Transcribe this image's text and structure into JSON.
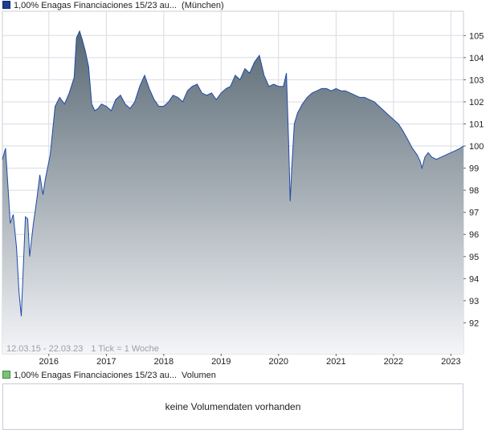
{
  "legend": {
    "price_label": "1,00% Enagas Financiaciones 15/23 au...",
    "exchange": "(München)",
    "volume_label": "1,00% Enagas Financiaciones 15/23 au...",
    "volume_suffix": "Volumen"
  },
  "chart_info": {
    "range": "12.03.15 - 22.03.23",
    "tick": "1 Tick = 1 Woche"
  },
  "volume_panel": {
    "message": "keine Volumendaten vorhanden"
  },
  "colors": {
    "line": "#1f4aa8",
    "fill_top": "#586873",
    "fill_bottom": "#f4f5f8",
    "grid": "#d8dbe2",
    "border": "#c8ccd6"
  },
  "chart_data": {
    "type": "area",
    "xlabel": "",
    "ylabel": "",
    "x_ticks": [
      "2016",
      "2017",
      "2018",
      "2019",
      "2020",
      "2021",
      "2022",
      "2023"
    ],
    "y_ticks": [
      92,
      93,
      94,
      95,
      96,
      97,
      98,
      99,
      100,
      101,
      102,
      103,
      104,
      105
    ],
    "ylim": [
      90.6,
      106.1
    ],
    "xlim": [
      "2015-03-12",
      "2023-03-22"
    ],
    "grid": true,
    "legend_position": "top-left",
    "series": [
      {
        "name": "1,00% Enagas Financiaciones 15/23 au...",
        "x": [
          "2015-03-12",
          "2015-04-01",
          "2015-05-01",
          "2015-05-20",
          "2015-06-10",
          "2015-06-25",
          "2015-07-10",
          "2015-08-05",
          "2015-08-20",
          "2015-09-01",
          "2015-09-25",
          "2015-10-15",
          "2015-11-05",
          "2015-11-25",
          "2015-12-10",
          "2016-01-10",
          "2016-02-10",
          "2016-03-10",
          "2016-04-10",
          "2016-05-10",
          "2016-06-10",
          "2016-06-25",
          "2016-07-15",
          "2016-08-01",
          "2016-08-20",
          "2016-09-10",
          "2016-09-30",
          "2016-10-20",
          "2016-11-10",
          "2016-12-01",
          "2017-01-01",
          "2017-02-01",
          "2017-03-01",
          "2017-04-01",
          "2017-05-01",
          "2017-06-01",
          "2017-07-01",
          "2017-08-01",
          "2017-09-01",
          "2017-10-01",
          "2017-11-01",
          "2017-12-01",
          "2018-01-01",
          "2018-02-01",
          "2018-03-01",
          "2018-04-01",
          "2018-05-01",
          "2018-06-01",
          "2018-07-01",
          "2018-08-01",
          "2018-09-01",
          "2018-10-01",
          "2018-11-01",
          "2018-12-01",
          "2019-01-01",
          "2019-02-01",
          "2019-03-01",
          "2019-04-01",
          "2019-05-01",
          "2019-06-01",
          "2019-07-01",
          "2019-08-01",
          "2019-09-01",
          "2019-10-01",
          "2019-11-01",
          "2019-12-01",
          "2020-01-01",
          "2020-02-01",
          "2020-02-20",
          "2020-03-05",
          "2020-03-15",
          "2020-03-25",
          "2020-04-10",
          "2020-05-01",
          "2020-06-01",
          "2020-07-01",
          "2020-08-01",
          "2020-09-01",
          "2020-10-01",
          "2020-11-01",
          "2020-12-01",
          "2021-01-01",
          "2021-02-01",
          "2021-03-01",
          "2021-04-01",
          "2021-05-01",
          "2021-06-01",
          "2021-07-01",
          "2021-08-01",
          "2021-09-01",
          "2021-10-01",
          "2021-11-01",
          "2021-12-01",
          "2022-01-01",
          "2022-02-01",
          "2022-03-01",
          "2022-04-01",
          "2022-05-01",
          "2022-06-01",
          "2022-06-20",
          "2022-07-01",
          "2022-07-20",
          "2022-08-10",
          "2022-09-01",
          "2022-10-01",
          "2022-11-01",
          "2022-12-01",
          "2023-01-01",
          "2023-02-01",
          "2023-03-01",
          "2023-03-22"
        ],
        "values": [
          99.4,
          99.9,
          96.5,
          96.9,
          95.4,
          93.4,
          92.3,
          96.8,
          96.7,
          95.0,
          96.5,
          97.5,
          98.7,
          97.8,
          98.5,
          99.6,
          101.8,
          102.2,
          101.9,
          102.4,
          103.1,
          104.9,
          105.2,
          104.8,
          104.3,
          103.6,
          101.9,
          101.6,
          101.7,
          101.9,
          101.8,
          101.6,
          102.1,
          102.3,
          101.9,
          101.7,
          102.0,
          102.7,
          103.2,
          102.6,
          102.1,
          101.8,
          101.8,
          102.0,
          102.3,
          102.2,
          102.0,
          102.5,
          102.7,
          102.8,
          102.4,
          102.3,
          102.4,
          102.1,
          102.4,
          102.6,
          102.7,
          103.2,
          103.0,
          103.5,
          103.3,
          103.8,
          104.1,
          103.2,
          102.7,
          102.8,
          102.7,
          102.7,
          103.3,
          100.2,
          97.5,
          99.0,
          101.0,
          101.5,
          101.9,
          102.2,
          102.4,
          102.5,
          102.6,
          102.6,
          102.5,
          102.6,
          102.5,
          102.5,
          102.4,
          102.3,
          102.2,
          102.2,
          102.1,
          102.0,
          101.8,
          101.6,
          101.4,
          101.2,
          101.0,
          100.7,
          100.3,
          99.9,
          99.6,
          99.3,
          99.0,
          99.5,
          99.7,
          99.5,
          99.4,
          99.5,
          99.6,
          99.7,
          99.8,
          99.9,
          100.0
        ]
      }
    ]
  }
}
